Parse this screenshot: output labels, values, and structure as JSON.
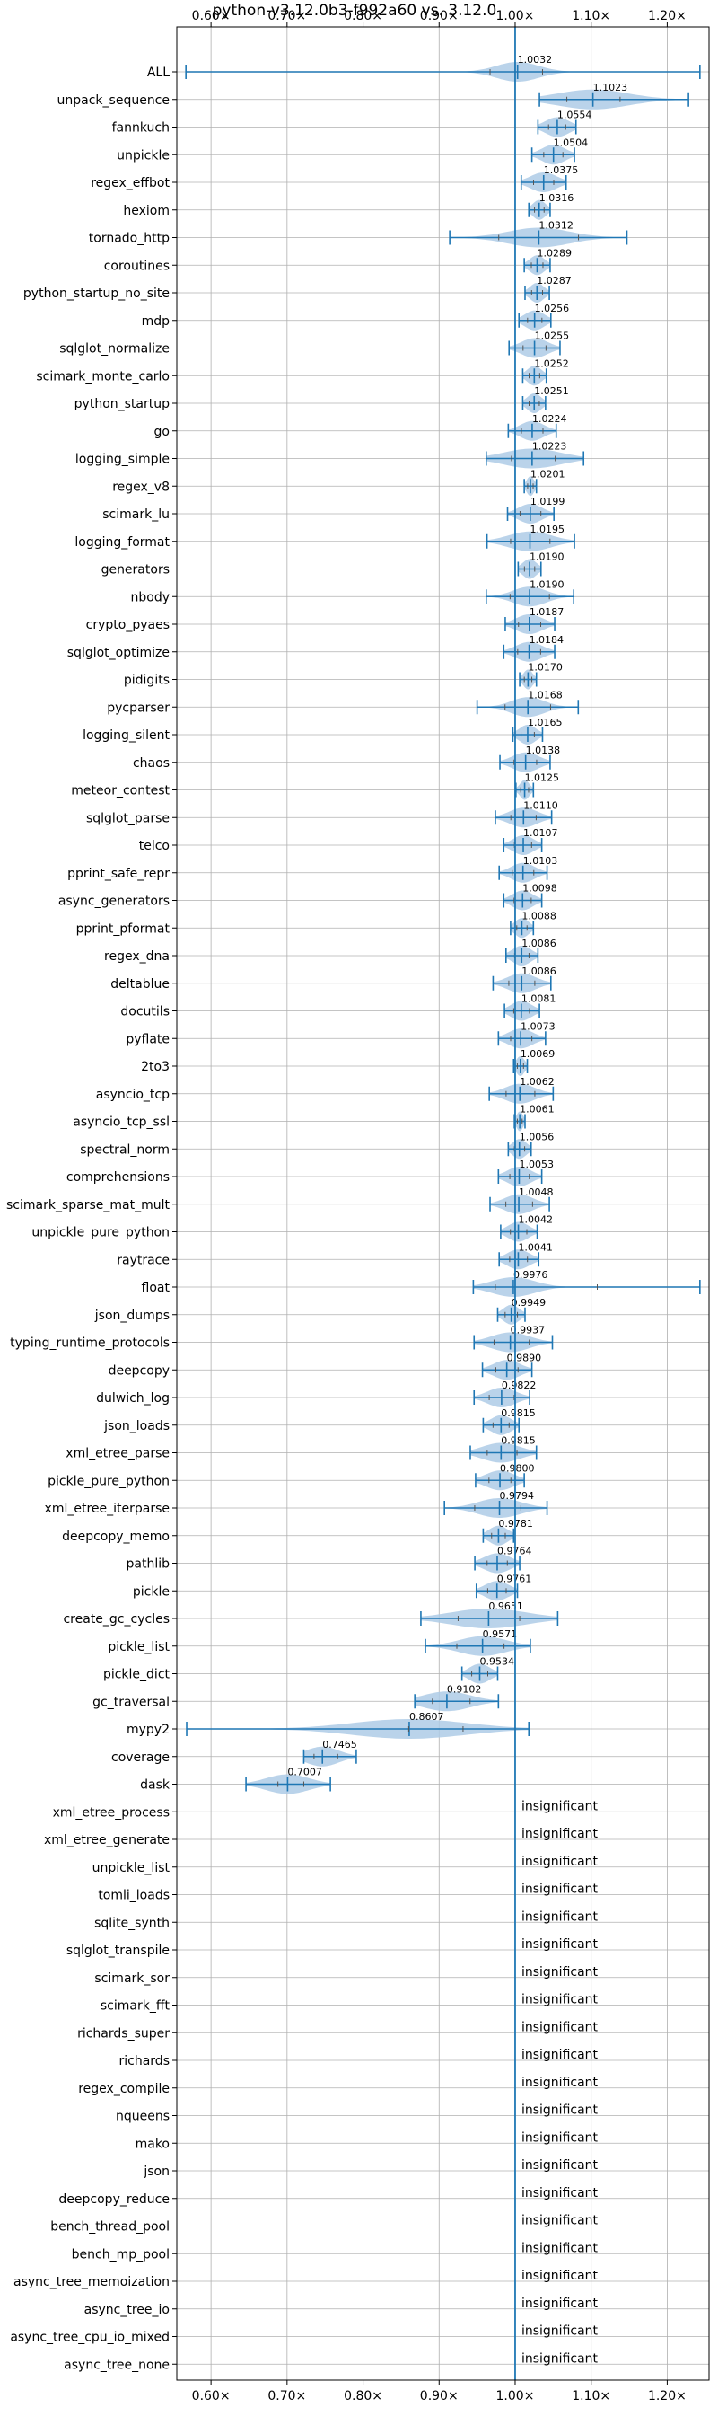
{
  "chart_data": {
    "type": "violin",
    "title": "python-v3.12.0b3-f992a60 vs. 3.12.0",
    "x_ticks": [
      0.6,
      0.7,
      0.8,
      0.9,
      1.0,
      1.1,
      1.2
    ],
    "x_tick_labels": [
      "0.60×",
      "0.70×",
      "0.80×",
      "0.90×",
      "1.00×",
      "1.10×",
      "1.20×"
    ],
    "xlim": [
      0.555,
      1.255
    ],
    "reference_line": 1.0,
    "grid": true,
    "accent_color": "#1f77b4",
    "violin_fill": "#aecbe6",
    "insignificant_text": "insignificant",
    "benchmarks": [
      {
        "name": "ALL",
        "value": 1.0032,
        "label": "1.0032",
        "min": 0.567,
        "max": 1.243,
        "q1": 0.967,
        "q3": 1.036,
        "spread": 0.045
      },
      {
        "name": "unpack_sequence",
        "value": 1.1023,
        "label": "1.1023",
        "min": 1.032,
        "max": 1.228,
        "q1": 1.068,
        "q3": 1.138,
        "spread": 0.075
      },
      {
        "name": "fannkuch",
        "value": 1.0554,
        "label": "1.0554",
        "min": 1.03,
        "max": 1.08,
        "spread": 0.025
      },
      {
        "name": "unpickle",
        "value": 1.0504,
        "label": "1.0504",
        "min": 1.022,
        "max": 1.078,
        "spread": 0.025
      },
      {
        "name": "regex_effbot",
        "value": 1.0375,
        "label": "1.0375",
        "min": 1.008,
        "max": 1.067,
        "spread": 0.028
      },
      {
        "name": "hexiom",
        "value": 1.0316,
        "label": "1.0316",
        "min": 1.018,
        "max": 1.046,
        "spread": 0.014
      },
      {
        "name": "tornado_http",
        "value": 1.0312,
        "label": "1.0312",
        "min": 0.914,
        "max": 1.147,
        "spread": 0.065
      },
      {
        "name": "coroutines",
        "value": 1.0289,
        "label": "1.0289",
        "min": 1.012,
        "max": 1.046,
        "spread": 0.016
      },
      {
        "name": "python_startup_no_site",
        "value": 1.0287,
        "label": "1.0287",
        "min": 1.013,
        "max": 1.045,
        "spread": 0.015
      },
      {
        "name": "mdp",
        "value": 1.0256,
        "label": "1.0256",
        "min": 1.005,
        "max": 1.047,
        "spread": 0.021
      },
      {
        "name": "sqlglot_normalize",
        "value": 1.0255,
        "label": "1.0255",
        "min": 0.992,
        "max": 1.059,
        "spread": 0.028
      },
      {
        "name": "scimark_monte_carlo",
        "value": 1.0252,
        "label": "1.0252",
        "min": 1.01,
        "max": 1.041,
        "spread": 0.015
      },
      {
        "name": "python_startup",
        "value": 1.0251,
        "label": "1.0251",
        "min": 1.01,
        "max": 1.04,
        "spread": 0.015
      },
      {
        "name": "go",
        "value": 1.0224,
        "label": "1.0224",
        "min": 0.991,
        "max": 1.054,
        "spread": 0.025
      },
      {
        "name": "logging_simple",
        "value": 1.0223,
        "label": "1.0223",
        "min": 0.962,
        "max": 1.09,
        "spread": 0.06
      },
      {
        "name": "regex_v8",
        "value": 1.0201,
        "label": "1.0201",
        "min": 1.012,
        "max": 1.028,
        "spread": 0.008
      },
      {
        "name": "scimark_lu",
        "value": 1.0199,
        "label": "1.0199",
        "min": 0.99,
        "max": 1.051,
        "spread": 0.025
      },
      {
        "name": "logging_format",
        "value": 1.0195,
        "label": "1.0195",
        "min": 0.963,
        "max": 1.078,
        "spread": 0.045
      },
      {
        "name": "generators",
        "value": 1.019,
        "label": "1.0190",
        "min": 1.004,
        "max": 1.034,
        "spread": 0.015
      },
      {
        "name": "nbody",
        "value": 1.019,
        "label": "1.0190",
        "min": 0.962,
        "max": 1.077,
        "spread": 0.035
      },
      {
        "name": "crypto_pyaes",
        "value": 1.0187,
        "label": "1.0187",
        "min": 0.987,
        "max": 1.052,
        "spread": 0.028
      },
      {
        "name": "sqlglot_optimize",
        "value": 1.0184,
        "label": "1.0184",
        "min": 0.985,
        "max": 1.052,
        "spread": 0.028
      },
      {
        "name": "pidigits",
        "value": 1.017,
        "label": "1.0170",
        "min": 1.006,
        "max": 1.028,
        "spread": 0.01
      },
      {
        "name": "pycparser",
        "value": 1.0168,
        "label": "1.0168",
        "min": 0.95,
        "max": 1.083,
        "spread": 0.035
      },
      {
        "name": "logging_silent",
        "value": 1.0165,
        "label": "1.0165",
        "min": 0.997,
        "max": 1.036,
        "spread": 0.018
      },
      {
        "name": "chaos",
        "value": 1.0138,
        "label": "1.0138",
        "min": 0.98,
        "max": 1.046,
        "spread": 0.028
      },
      {
        "name": "meteor_contest",
        "value": 1.0125,
        "label": "1.0125",
        "min": 1.001,
        "max": 1.024,
        "spread": 0.01
      },
      {
        "name": "sqlglot_parse",
        "value": 1.011,
        "label": "1.0110",
        "min": 0.974,
        "max": 1.048,
        "spread": 0.03
      },
      {
        "name": "telco",
        "value": 1.0107,
        "label": "1.0107",
        "min": 0.985,
        "max": 1.035,
        "spread": 0.022
      },
      {
        "name": "pprint_safe_repr",
        "value": 1.0103,
        "label": "1.0103",
        "min": 0.979,
        "max": 1.042,
        "spread": 0.025
      },
      {
        "name": "async_generators",
        "value": 1.0098,
        "label": "1.0098",
        "min": 0.985,
        "max": 1.035,
        "spread": 0.022
      },
      {
        "name": "pprint_pformat",
        "value": 1.0088,
        "label": "1.0088",
        "min": 0.994,
        "max": 1.024,
        "spread": 0.015
      },
      {
        "name": "regex_dna",
        "value": 1.0086,
        "label": "1.0086",
        "min": 0.988,
        "max": 1.03,
        "spread": 0.02
      },
      {
        "name": "deltablue",
        "value": 1.0086,
        "label": "1.0086",
        "min": 0.971,
        "max": 1.047,
        "spread": 0.03
      },
      {
        "name": "docutils",
        "value": 1.0081,
        "label": "1.0081",
        "min": 0.986,
        "max": 1.032,
        "spread": 0.022
      },
      {
        "name": "pyflate",
        "value": 1.0073,
        "label": "1.0073",
        "min": 0.978,
        "max": 1.04,
        "spread": 0.026
      },
      {
        "name": "2to3",
        "value": 1.0069,
        "label": "1.0069",
        "min": 0.998,
        "max": 1.016,
        "spread": 0.009
      },
      {
        "name": "asyncio_tcp",
        "value": 1.0062,
        "label": "1.0062",
        "min": 0.966,
        "max": 1.05,
        "spread": 0.032
      },
      {
        "name": "asyncio_tcp_ssl",
        "value": 1.0061,
        "label": "1.0061",
        "min": 0.999,
        "max": 1.013,
        "spread": 0.007
      },
      {
        "name": "spectral_norm",
        "value": 1.0056,
        "label": "1.0056",
        "min": 0.991,
        "max": 1.021,
        "spread": 0.015
      },
      {
        "name": "comprehensions",
        "value": 1.0053,
        "label": "1.0053",
        "min": 0.978,
        "max": 1.035,
        "spread": 0.025
      },
      {
        "name": "scimark_sparse_mat_mult",
        "value": 1.0048,
        "label": "1.0048",
        "min": 0.967,
        "max": 1.045,
        "spread": 0.03
      },
      {
        "name": "unpickle_pure_python",
        "value": 1.0042,
        "label": "1.0042",
        "min": 0.981,
        "max": 1.029,
        "spread": 0.022
      },
      {
        "name": "raytrace",
        "value": 1.0041,
        "label": "1.0041",
        "min": 0.979,
        "max": 1.031,
        "spread": 0.024
      },
      {
        "name": "float",
        "value": 0.9976,
        "label": "0.9976",
        "min": 0.945,
        "max": 1.243,
        "spread": 0.045
      },
      {
        "name": "json_dumps",
        "value": 0.9949,
        "label": "0.9949",
        "min": 0.977,
        "max": 1.013,
        "spread": 0.017
      },
      {
        "name": "typing_runtime_protocols",
        "value": 0.9937,
        "label": "0.9937",
        "min": 0.946,
        "max": 1.049,
        "spread": 0.04
      },
      {
        "name": "deepcopy",
        "value": 0.989,
        "label": "0.9890",
        "min": 0.957,
        "max": 1.022,
        "spread": 0.028
      },
      {
        "name": "dulwich_log",
        "value": 0.9822,
        "label": "0.9822",
        "min": 0.946,
        "max": 1.019,
        "spread": 0.03
      },
      {
        "name": "json_loads",
        "value": 0.9815,
        "label": "0.9815",
        "min": 0.958,
        "max": 1.005,
        "spread": 0.022
      },
      {
        "name": "xml_etree_parse",
        "value": 0.9815,
        "label": "0.9815",
        "min": 0.941,
        "max": 1.028,
        "spread": 0.04
      },
      {
        "name": "pickle_pure_python",
        "value": 0.98,
        "label": "0.9800",
        "min": 0.948,
        "max": 1.012,
        "spread": 0.03
      },
      {
        "name": "xml_etree_iterparse",
        "value": 0.9794,
        "label": "0.9794",
        "min": 0.907,
        "max": 1.042,
        "spread": 0.045
      },
      {
        "name": "deepcopy_memo",
        "value": 0.9781,
        "label": "0.9781",
        "min": 0.958,
        "max": 0.998,
        "spread": 0.02
      },
      {
        "name": "pathlib",
        "value": 0.9764,
        "label": "0.9764",
        "min": 0.947,
        "max": 1.006,
        "spread": 0.028
      },
      {
        "name": "pickle",
        "value": 0.9761,
        "label": "0.9761",
        "min": 0.949,
        "max": 1.003,
        "spread": 0.025
      },
      {
        "name": "create_gc_cycles",
        "value": 0.9651,
        "label": "0.9651",
        "min": 0.876,
        "max": 1.056,
        "spread": 0.08
      },
      {
        "name": "pickle_list",
        "value": 0.9571,
        "label": "0.9571",
        "min": 0.882,
        "max": 1.02,
        "spread": 0.05
      },
      {
        "name": "pickle_dict",
        "value": 0.9534,
        "label": "0.9534",
        "min": 0.93,
        "max": 0.977,
        "spread": 0.022
      },
      {
        "name": "gc_traversal",
        "value": 0.9102,
        "label": "0.9102",
        "min": 0.868,
        "max": 0.978,
        "spread": 0.05
      },
      {
        "name": "mypy2",
        "value": 0.8607,
        "label": "0.8607",
        "min": 0.568,
        "max": 1.018,
        "q1": 0.86,
        "spread": 0.12
      },
      {
        "name": "coverage",
        "value": 0.7465,
        "label": "0.7465",
        "min": 0.722,
        "max": 0.791,
        "spread": 0.035
      },
      {
        "name": "dask",
        "value": 0.7007,
        "label": "0.7007",
        "min": 0.646,
        "max": 0.757,
        "q1": 0.688,
        "q3": 0.722,
        "spread": 0.045
      },
      {
        "name": "xml_etree_process",
        "insignificant": true
      },
      {
        "name": "xml_etree_generate",
        "insignificant": true
      },
      {
        "name": "unpickle_list",
        "insignificant": true
      },
      {
        "name": "tomli_loads",
        "insignificant": true
      },
      {
        "name": "sqlite_synth",
        "insignificant": true
      },
      {
        "name": "sqlglot_transpile",
        "insignificant": true
      },
      {
        "name": "scimark_sor",
        "insignificant": true
      },
      {
        "name": "scimark_fft",
        "insignificant": true
      },
      {
        "name": "richards_super",
        "insignificant": true
      },
      {
        "name": "richards",
        "insignificant": true
      },
      {
        "name": "regex_compile",
        "insignificant": true
      },
      {
        "name": "nqueens",
        "insignificant": true
      },
      {
        "name": "mako",
        "insignificant": true
      },
      {
        "name": "json",
        "insignificant": true
      },
      {
        "name": "deepcopy_reduce",
        "insignificant": true
      },
      {
        "name": "bench_thread_pool",
        "insignificant": true
      },
      {
        "name": "bench_mp_pool",
        "insignificant": true
      },
      {
        "name": "async_tree_memoization",
        "insignificant": true
      },
      {
        "name": "async_tree_io",
        "insignificant": true
      },
      {
        "name": "async_tree_cpu_io_mixed",
        "insignificant": true
      },
      {
        "name": "async_tree_none",
        "insignificant": true
      }
    ]
  }
}
